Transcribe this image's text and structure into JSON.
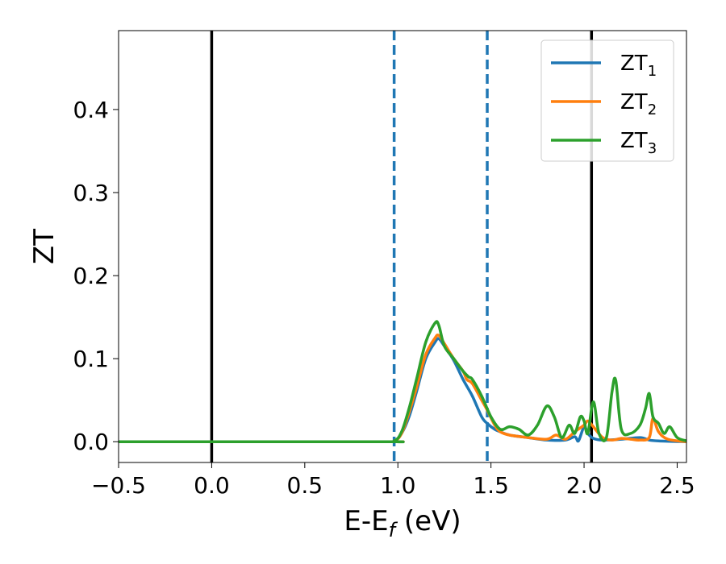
{
  "chart_data": {
    "type": "line",
    "xlabel": {
      "main": "E-E",
      "sub": "f",
      "suffix": " (eV)"
    },
    "ylabel": "ZT",
    "xlim": [
      -0.5,
      2.55
    ],
    "ylim": [
      -0.025,
      0.495
    ],
    "xticks": [
      -0.5,
      0.0,
      0.5,
      1.0,
      1.5,
      2.0,
      2.5
    ],
    "xtick_labels": [
      "−0.5",
      "0.0",
      "0.5",
      "1.0",
      "1.5",
      "2.0",
      "2.5"
    ],
    "yticks": [
      0.0,
      0.1,
      0.2,
      0.3,
      0.4
    ],
    "ytick_labels": [
      "0.0",
      "0.1",
      "0.2",
      "0.3",
      "0.4"
    ],
    "grid": false,
    "legend_position": "top-right",
    "vlines": [
      {
        "x": 0.0,
        "color": "#000000",
        "style": "solid"
      },
      {
        "x": 2.04,
        "color": "#000000",
        "style": "solid"
      },
      {
        "x": 0.98,
        "color": "#1f77b4",
        "style": "dashed"
      },
      {
        "x": 1.48,
        "color": "#1f77b4",
        "style": "dashed"
      }
    ],
    "series": [
      {
        "name": {
          "main": "ZT",
          "sub": "1"
        },
        "color": "#1f77b4",
        "points": [
          [
            -0.5,
            0
          ],
          [
            0.9,
            0
          ],
          [
            0.98,
            0.001
          ],
          [
            1.02,
            0.01
          ],
          [
            1.06,
            0.03
          ],
          [
            1.1,
            0.06
          ],
          [
            1.15,
            0.1
          ],
          [
            1.2,
            0.12
          ],
          [
            1.22,
            0.124
          ],
          [
            1.25,
            0.115
          ],
          [
            1.3,
            0.098
          ],
          [
            1.35,
            0.075
          ],
          [
            1.4,
            0.055
          ],
          [
            1.45,
            0.03
          ],
          [
            1.48,
            0.022
          ],
          [
            1.52,
            0.015
          ],
          [
            1.55,
            0.012
          ],
          [
            1.6,
            0.008
          ],
          [
            1.7,
            0.005
          ],
          [
            1.8,
            0.002
          ],
          [
            1.9,
            0.002
          ],
          [
            1.95,
            0.006
          ],
          [
            1.97,
            0.001
          ],
          [
            2.0,
            0.018
          ],
          [
            2.02,
            0.01
          ],
          [
            2.05,
            0.004
          ],
          [
            2.1,
            0.002
          ],
          [
            2.2,
            0.003
          ],
          [
            2.3,
            0.005
          ],
          [
            2.35,
            0.002
          ],
          [
            2.4,
            0.001
          ],
          [
            2.55,
            0
          ]
        ]
      },
      {
        "name": {
          "main": "ZT",
          "sub": "2"
        },
        "color": "#ff7f0e",
        "points": [
          [
            -0.5,
            0
          ],
          [
            0.9,
            0
          ],
          [
            0.98,
            0.001
          ],
          [
            1.02,
            0.01
          ],
          [
            1.06,
            0.035
          ],
          [
            1.1,
            0.065
          ],
          [
            1.15,
            0.105
          ],
          [
            1.2,
            0.125
          ],
          [
            1.22,
            0.128
          ],
          [
            1.25,
            0.118
          ],
          [
            1.3,
            0.1
          ],
          [
            1.35,
            0.085
          ],
          [
            1.37,
            0.075
          ],
          [
            1.4,
            0.07
          ],
          [
            1.45,
            0.05
          ],
          [
            1.48,
            0.038
          ],
          [
            1.52,
            0.02
          ],
          [
            1.55,
            0.012
          ],
          [
            1.6,
            0.008
          ],
          [
            1.7,
            0.005
          ],
          [
            1.8,
            0.003
          ],
          [
            1.85,
            0.008
          ],
          [
            1.9,
            0.003
          ],
          [
            1.95,
            0.012
          ],
          [
            2.0,
            0.02
          ],
          [
            2.02,
            0.025
          ],
          [
            2.05,
            0.018
          ],
          [
            2.1,
            0.005
          ],
          [
            2.15,
            0.002
          ],
          [
            2.2,
            0.004
          ],
          [
            2.25,
            0.003
          ],
          [
            2.3,
            0.002
          ],
          [
            2.35,
            0.005
          ],
          [
            2.37,
            0.028
          ],
          [
            2.4,
            0.012
          ],
          [
            2.45,
            0.003
          ],
          [
            2.55,
            0
          ]
        ]
      },
      {
        "name": {
          "main": "ZT",
          "sub": "3"
        },
        "color": "#2ca02c",
        "points": [
          [
            -0.5,
            0
          ],
          [
            0.9,
            0
          ],
          [
            0.98,
            0.001
          ],
          [
            1.02,
            0.012
          ],
          [
            1.06,
            0.04
          ],
          [
            1.1,
            0.075
          ],
          [
            1.15,
            0.12
          ],
          [
            1.2,
            0.143
          ],
          [
            1.22,
            0.14
          ],
          [
            1.25,
            0.115
          ],
          [
            1.3,
            0.1
          ],
          [
            1.35,
            0.085
          ],
          [
            1.38,
            0.078
          ],
          [
            1.4,
            0.075
          ],
          [
            1.45,
            0.055
          ],
          [
            1.5,
            0.03
          ],
          [
            1.55,
            0.015
          ],
          [
            1.6,
            0.018
          ],
          [
            1.65,
            0.015
          ],
          [
            1.7,
            0.008
          ],
          [
            1.75,
            0.02
          ],
          [
            1.8,
            0.043
          ],
          [
            1.84,
            0.03
          ],
          [
            1.88,
            0.005
          ],
          [
            1.92,
            0.02
          ],
          [
            1.95,
            0.01
          ],
          [
            1.98,
            0.03
          ],
          [
            2.0,
            0.025
          ],
          [
            2.02,
            0.01
          ],
          [
            2.05,
            0.048
          ],
          [
            2.08,
            0.01
          ],
          [
            2.12,
            0.005
          ],
          [
            2.15,
            0.06
          ],
          [
            2.17,
            0.074
          ],
          [
            2.2,
            0.015
          ],
          [
            2.25,
            0.01
          ],
          [
            2.3,
            0.02
          ],
          [
            2.33,
            0.04
          ],
          [
            2.35,
            0.058
          ],
          [
            2.37,
            0.03
          ],
          [
            2.4,
            0.022
          ],
          [
            2.43,
            0.01
          ],
          [
            2.46,
            0.018
          ],
          [
            2.5,
            0.005
          ],
          [
            2.55,
            0.001
          ]
        ]
      }
    ]
  }
}
